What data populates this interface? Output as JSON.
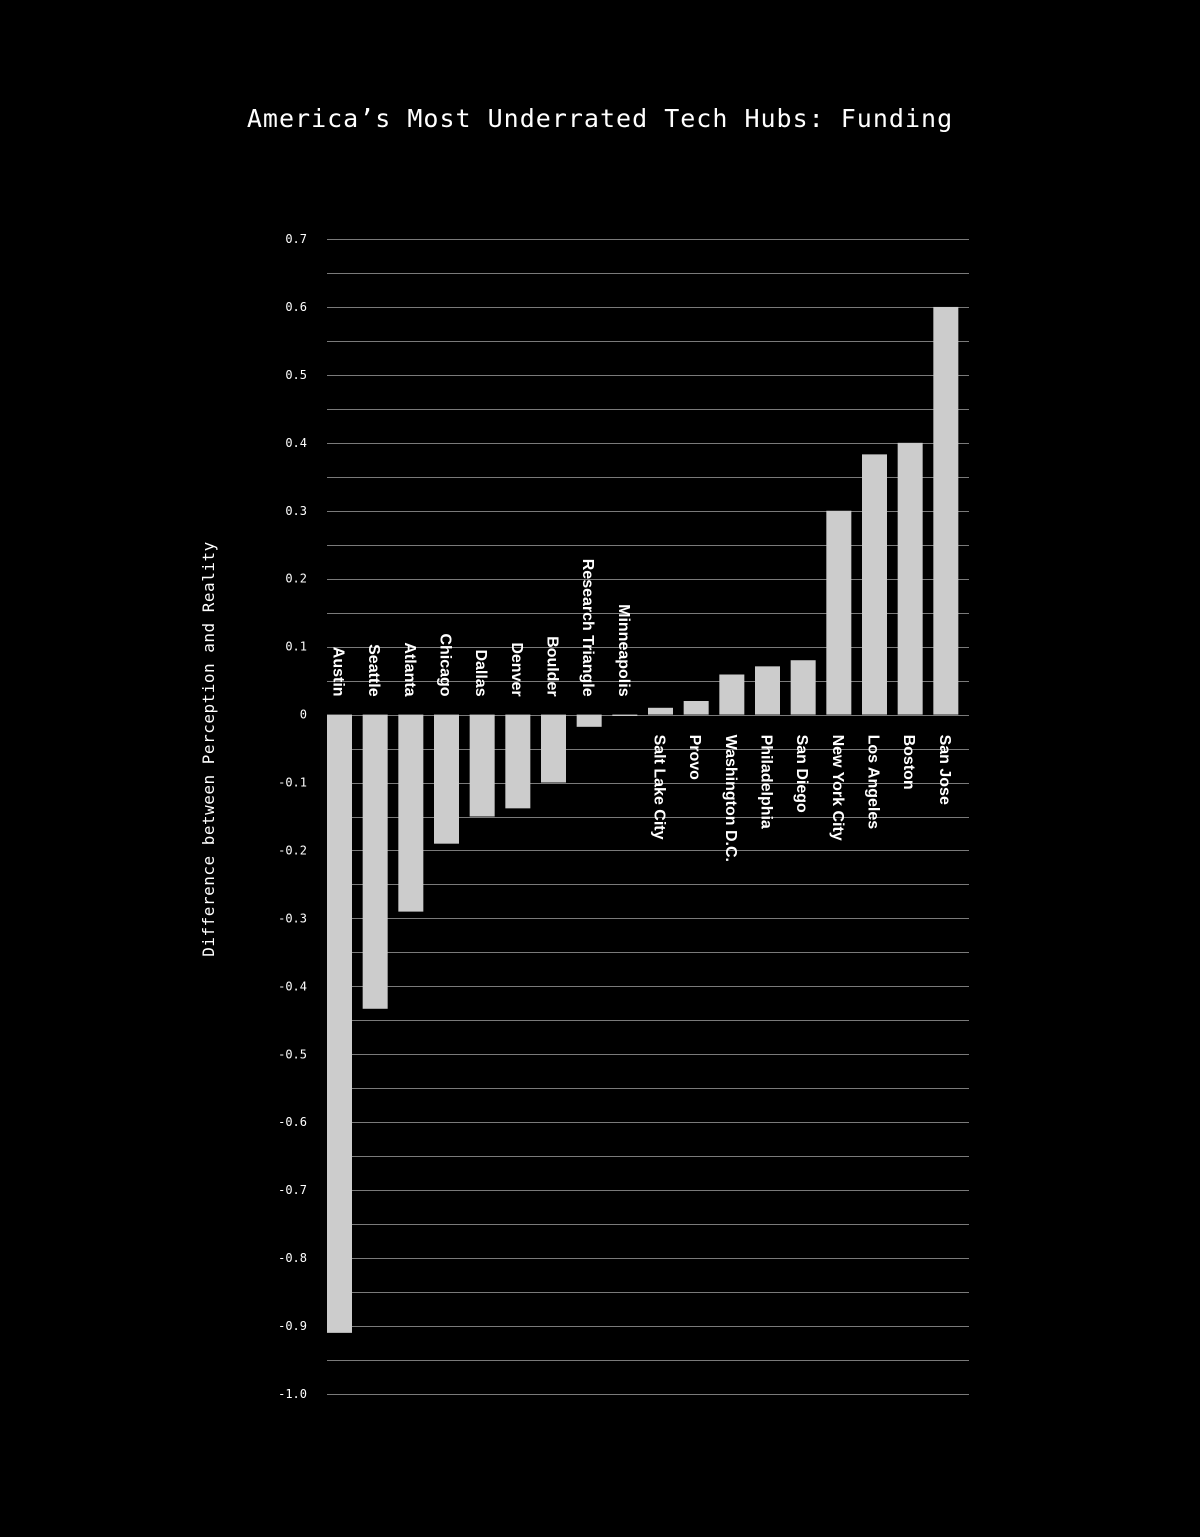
{
  "chart_data": {
    "type": "bar",
    "title": "America’s Most Underrated Tech Hubs: Funding",
    "xlabel": "",
    "ylabel": "Difference between Perception and Reality",
    "ylim": [
      -1.0,
      0.7
    ],
    "yticks": [
      "0.7",
      "0.6",
      "0.5",
      "0.4",
      "0.3",
      "0.2",
      "0.1",
      "0",
      "-0.1",
      "-0.2",
      "-0.3",
      "-0.4",
      "-0.5",
      "-0.6",
      "-0.7",
      "-0.8",
      "-0.9",
      "-1.0"
    ],
    "ytick_values": [
      0.7,
      0.6,
      0.5,
      0.4,
      0.3,
      0.2,
      0.1,
      0,
      -0.1,
      -0.2,
      -0.3,
      -0.4,
      -0.5,
      -0.6,
      -0.7,
      -0.8,
      -0.9,
      -1.0
    ],
    "grid": true,
    "categories": [
      "Austin",
      "Seattle",
      "Atlanta",
      "Chicago",
      "Dallas",
      "Denver",
      "Boulder",
      "Research Triangle",
      "Minneapolis",
      "Salt Lake City",
      "Provo",
      "Washington D.C.",
      "Philadelphia",
      "San Diego",
      "New York City",
      "Los Angeles",
      "Boston",
      "San Jose"
    ],
    "values": [
      -0.91,
      -0.433,
      -0.29,
      -0.19,
      -0.15,
      -0.138,
      -0.1,
      -0.018,
      -0.002,
      0.01,
      0.02,
      0.059,
      0.071,
      0.08,
      0.3,
      0.383,
      0.4,
      0.6
    ],
    "colors": {
      "background": "#000000",
      "bar": "#cccccc",
      "grid": "#7a7a7a",
      "text": "#ffffff"
    }
  }
}
